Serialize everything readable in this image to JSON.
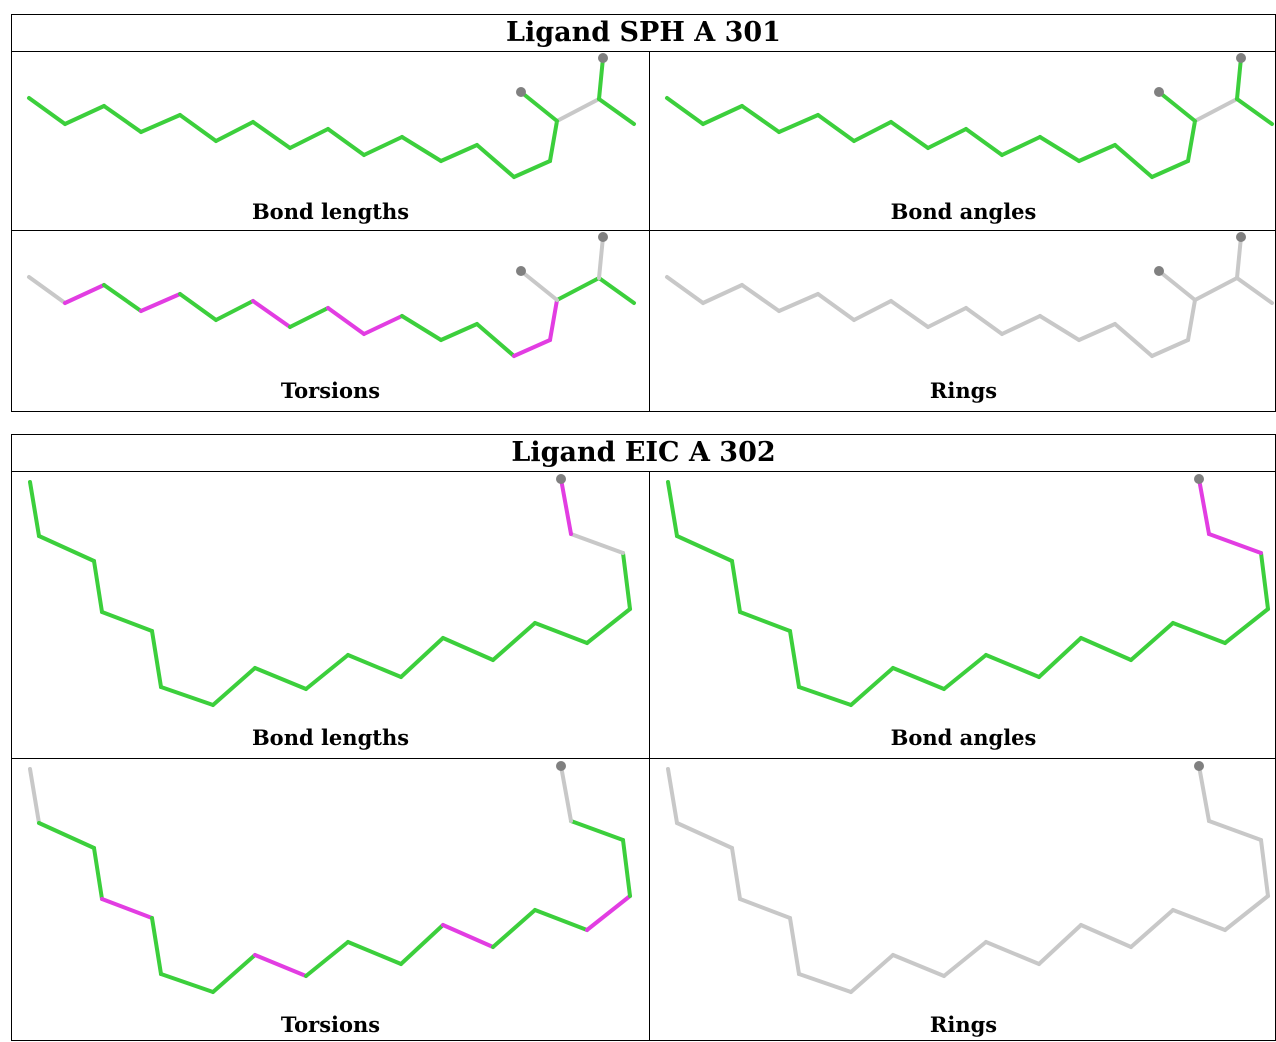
{
  "tables": [
    {
      "title": "Ligand SPH A 301",
      "panels": [
        {
          "caption": "Bond lengths",
          "kind": "sph",
          "mode": "lengths"
        },
        {
          "caption": "Bond angles",
          "kind": "sph",
          "mode": "angles"
        },
        {
          "caption": "Torsions",
          "kind": "sph",
          "mode": "torsions"
        },
        {
          "caption": "Rings",
          "kind": "sph",
          "mode": "rings"
        }
      ]
    },
    {
      "title": "Ligand EIC A 302",
      "panels": [
        {
          "caption": "Bond lengths",
          "kind": "eic",
          "mode": "lengths"
        },
        {
          "caption": "Bond angles",
          "kind": "eic",
          "mode": "angles"
        },
        {
          "caption": "Torsions",
          "kind": "eic",
          "mode": "torsions"
        },
        {
          "caption": "Rings",
          "kind": "eic",
          "mode": "rings"
        }
      ]
    }
  ],
  "colors": {
    "good": "#3ccf3c",
    "outlier": "#e23de2",
    "neutral": "#c8c8c8",
    "atom": "#808080"
  }
}
